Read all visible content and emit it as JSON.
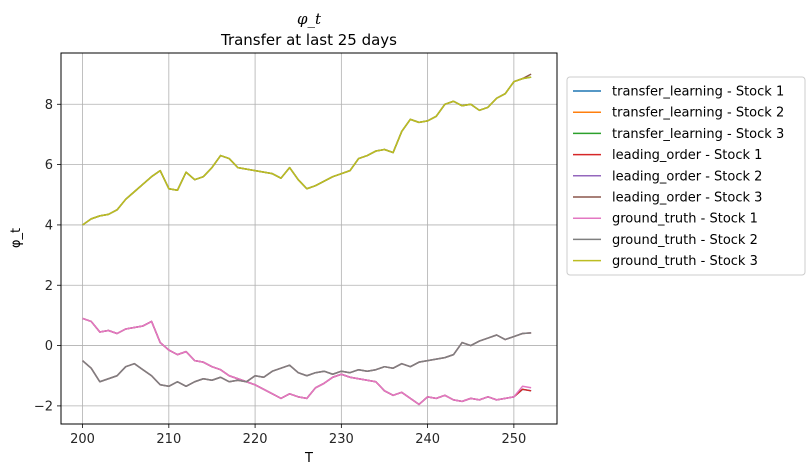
{
  "chart_data": {
    "type": "line",
    "title": "φ_t",
    "subtitle": "Transfer at last 25 days",
    "xlabel": "T",
    "ylabel": "φ_t",
    "xlim": [
      197.5,
      255
    ],
    "ylim": [
      -2.6,
      9.7
    ],
    "xticks": [
      200,
      210,
      220,
      230,
      240,
      250
    ],
    "yticks": [
      -2,
      0,
      2,
      4,
      6,
      8
    ],
    "grid": true,
    "legend_position": "outside-right",
    "colors": {
      "blue": "#1f77b4",
      "orange": "#ff7f0e",
      "green": "#2ca02c",
      "red": "#d62728",
      "purple": "#9467bd",
      "brown": "#8c564b",
      "pink": "#e377c2",
      "gray": "#7f7f7f",
      "olive": "#bcbd22"
    },
    "x": [
      200,
      201,
      202,
      203,
      204,
      205,
      206,
      207,
      208,
      209,
      210,
      211,
      212,
      213,
      214,
      215,
      216,
      217,
      218,
      219,
      220,
      221,
      222,
      223,
      224,
      225,
      226,
      227,
      228,
      229,
      230,
      231,
      232,
      233,
      234,
      235,
      236,
      237,
      238,
      239,
      240,
      241,
      242,
      243,
      244,
      245,
      246,
      247,
      248,
      249,
      250,
      251,
      252
    ],
    "series": [
      {
        "name": "transfer_learning - Stock 1",
        "color": "#1f77b4",
        "values": [
          0.9,
          0.8,
          0.45,
          0.5,
          0.4,
          0.55,
          0.6,
          0.65,
          0.8,
          0.1,
          -0.15,
          -0.3,
          -0.2,
          -0.5,
          -0.55,
          -0.7,
          -0.8,
          -1.0,
          -1.1,
          -1.2,
          -1.3,
          -1.45,
          -1.6,
          -1.75,
          -1.6,
          -1.7,
          -1.75,
          -1.4,
          -1.25,
          -1.05,
          -0.95,
          -1.05,
          -1.1,
          -1.15,
          -1.2,
          -1.5,
          -1.65,
          -1.55,
          -1.75,
          -1.95,
          -1.7,
          -1.75,
          -1.65,
          -1.8,
          -1.85,
          -1.75,
          -1.8,
          -1.7,
          -1.8,
          -1.75,
          -1.7,
          -1.45,
          -1.5
        ]
      },
      {
        "name": "transfer_learning - Stock 2",
        "color": "#ff7f0e",
        "values": [
          -0.5,
          -0.75,
          -1.2,
          -1.1,
          -1.0,
          -0.7,
          -0.6,
          -0.8,
          -1.0,
          -1.3,
          -1.35,
          -1.2,
          -1.35,
          -1.2,
          -1.1,
          -1.15,
          -1.05,
          -1.2,
          -1.15,
          -1.2,
          -1.0,
          -1.05,
          -0.85,
          -0.75,
          -0.65,
          -0.9,
          -1.0,
          -0.9,
          -0.85,
          -0.95,
          -0.85,
          -0.9,
          -0.8,
          -0.85,
          -0.8,
          -0.7,
          -0.75,
          -0.6,
          -0.7,
          -0.55,
          -0.5,
          -0.45,
          -0.4,
          -0.3,
          0.1,
          0.0,
          0.15,
          0.25,
          0.35,
          0.2,
          0.3,
          0.4,
          0.42
        ]
      },
      {
        "name": "transfer_learning - Stock 3",
        "color": "#2ca02c",
        "values": [
          4.0,
          4.2,
          4.3,
          4.35,
          4.5,
          4.85,
          5.1,
          5.35,
          5.6,
          5.8,
          5.2,
          5.15,
          5.75,
          5.5,
          5.6,
          5.9,
          6.3,
          6.2,
          5.9,
          5.85,
          5.8,
          5.75,
          5.7,
          5.55,
          5.9,
          5.5,
          5.2,
          5.3,
          5.45,
          5.6,
          5.7,
          5.8,
          6.2,
          6.3,
          6.45,
          6.5,
          6.4,
          7.1,
          7.5,
          7.4,
          7.45,
          7.6,
          8.0,
          8.1,
          7.95,
          8.0,
          7.8,
          7.9,
          8.2,
          8.35,
          8.75,
          8.85,
          8.9
        ]
      },
      {
        "name": "leading_order - Stock 1",
        "color": "#d62728",
        "values": [
          0.9,
          0.8,
          0.45,
          0.5,
          0.4,
          0.55,
          0.6,
          0.65,
          0.8,
          0.1,
          -0.15,
          -0.3,
          -0.2,
          -0.5,
          -0.55,
          -0.7,
          -0.8,
          -1.0,
          -1.1,
          -1.2,
          -1.3,
          -1.45,
          -1.6,
          -1.75,
          -1.6,
          -1.7,
          -1.75,
          -1.4,
          -1.25,
          -1.05,
          -0.95,
          -1.05,
          -1.1,
          -1.15,
          -1.2,
          -1.5,
          -1.65,
          -1.55,
          -1.75,
          -1.95,
          -1.7,
          -1.75,
          -1.65,
          -1.8,
          -1.85,
          -1.75,
          -1.8,
          -1.7,
          -1.8,
          -1.75,
          -1.7,
          -1.45,
          -1.5
        ]
      },
      {
        "name": "leading_order - Stock 2",
        "color": "#9467bd",
        "values": [
          -0.5,
          -0.75,
          -1.2,
          -1.1,
          -1.0,
          -0.7,
          -0.6,
          -0.8,
          -1.0,
          -1.3,
          -1.35,
          -1.2,
          -1.35,
          -1.2,
          -1.1,
          -1.15,
          -1.05,
          -1.2,
          -1.15,
          -1.2,
          -1.0,
          -1.05,
          -0.85,
          -0.75,
          -0.65,
          -0.9,
          -1.0,
          -0.9,
          -0.85,
          -0.95,
          -0.85,
          -0.9,
          -0.8,
          -0.85,
          -0.8,
          -0.7,
          -0.75,
          -0.6,
          -0.7,
          -0.55,
          -0.5,
          -0.45,
          -0.4,
          -0.3,
          0.1,
          0.0,
          0.15,
          0.25,
          0.35,
          0.2,
          0.3,
          0.4,
          0.42
        ]
      },
      {
        "name": "leading_order - Stock 3",
        "color": "#8c564b",
        "values": [
          4.0,
          4.2,
          4.3,
          4.35,
          4.5,
          4.85,
          5.1,
          5.35,
          5.6,
          5.8,
          5.2,
          5.15,
          5.75,
          5.5,
          5.6,
          5.9,
          6.3,
          6.2,
          5.9,
          5.85,
          5.8,
          5.75,
          5.7,
          5.55,
          5.9,
          5.5,
          5.2,
          5.3,
          5.45,
          5.6,
          5.7,
          5.8,
          6.2,
          6.3,
          6.45,
          6.5,
          6.4,
          7.1,
          7.5,
          7.4,
          7.45,
          7.6,
          8.0,
          8.1,
          7.95,
          8.0,
          7.8,
          7.9,
          8.2,
          8.35,
          8.75,
          8.85,
          9.0
        ]
      },
      {
        "name": "ground_truth - Stock 1",
        "color": "#e377c2",
        "values": [
          0.9,
          0.8,
          0.45,
          0.5,
          0.4,
          0.55,
          0.6,
          0.65,
          0.8,
          0.1,
          -0.15,
          -0.3,
          -0.2,
          -0.5,
          -0.55,
          -0.7,
          -0.8,
          -1.0,
          -1.1,
          -1.2,
          -1.3,
          -1.45,
          -1.6,
          -1.75,
          -1.6,
          -1.7,
          -1.75,
          -1.4,
          -1.25,
          -1.05,
          -0.95,
          -1.05,
          -1.1,
          -1.15,
          -1.2,
          -1.5,
          -1.65,
          -1.55,
          -1.75,
          -1.95,
          -1.7,
          -1.75,
          -1.65,
          -1.8,
          -1.85,
          -1.75,
          -1.8,
          -1.7,
          -1.8,
          -1.75,
          -1.7,
          -1.35,
          -1.4
        ]
      },
      {
        "name": "ground_truth - Stock 2",
        "color": "#7f7f7f",
        "values": [
          -0.5,
          -0.75,
          -1.2,
          -1.1,
          -1.0,
          -0.7,
          -0.6,
          -0.8,
          -1.0,
          -1.3,
          -1.35,
          -1.2,
          -1.35,
          -1.2,
          -1.1,
          -1.15,
          -1.05,
          -1.2,
          -1.15,
          -1.2,
          -1.0,
          -1.05,
          -0.85,
          -0.75,
          -0.65,
          -0.9,
          -1.0,
          -0.9,
          -0.85,
          -0.95,
          -0.85,
          -0.9,
          -0.8,
          -0.85,
          -0.8,
          -0.7,
          -0.75,
          -0.6,
          -0.7,
          -0.55,
          -0.5,
          -0.45,
          -0.4,
          -0.3,
          0.1,
          0.0,
          0.15,
          0.25,
          0.35,
          0.2,
          0.3,
          0.4,
          0.42
        ]
      },
      {
        "name": "ground_truth - Stock 3",
        "color": "#bcbd22",
        "values": [
          4.0,
          4.2,
          4.3,
          4.35,
          4.5,
          4.85,
          5.1,
          5.35,
          5.6,
          5.8,
          5.2,
          5.15,
          5.75,
          5.5,
          5.6,
          5.9,
          6.3,
          6.2,
          5.9,
          5.85,
          5.8,
          5.75,
          5.7,
          5.55,
          5.9,
          5.5,
          5.2,
          5.3,
          5.45,
          5.6,
          5.7,
          5.8,
          6.2,
          6.3,
          6.45,
          6.5,
          6.4,
          7.1,
          7.5,
          7.4,
          7.45,
          7.6,
          8.0,
          8.1,
          7.95,
          8.0,
          7.8,
          7.9,
          8.2,
          8.35,
          8.75,
          8.85,
          8.9
        ]
      }
    ]
  }
}
